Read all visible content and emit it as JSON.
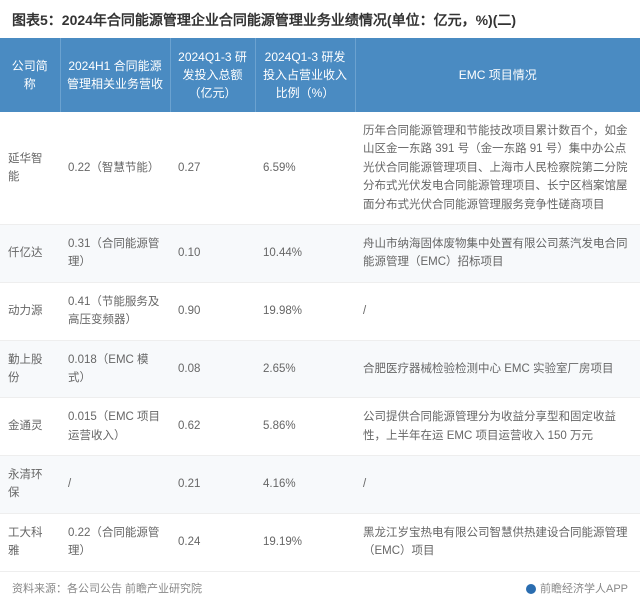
{
  "title": "图表5：2024年合同能源管理企业合同能源管理业务业绩情况(单位：亿元，%)(二)",
  "table": {
    "type": "table",
    "header_bg": "#4a8bc2",
    "header_fg": "#ffffff",
    "row_alt_bg": "#f7f9fb",
    "row_bg": "#ffffff",
    "border_color": "#eeeeee",
    "text_color": "#666666",
    "font_size": 12,
    "columns": [
      "公司简称",
      "2024H1 合同能源管理相关业务营收",
      "2024Q1-3 研发投入总额（亿元）",
      "2024Q1-3 研发投入占营业收入比例（%）",
      "EMC 项目情况"
    ],
    "rows": [
      {
        "c0": "延华智能",
        "c1": "0.22（智慧节能）",
        "c2": "0.27",
        "c3": "6.59%",
        "c4": "历年合同能源管理和节能技改项目累计数百个，如金山区金一东路 391 号（金一东路 91 号）集中办公点光伏合同能源管理项目、上海市人民检察院第二分院分布式光伏发电合同能源管理项目、长宁区档案馆屋面分布式光伏合同能源管理服务竞争性磋商项目"
      },
      {
        "c0": "仟亿达",
        "c1": "0.31（合同能源管理）",
        "c2": "0.10",
        "c3": "10.44%",
        "c4": "舟山市纳海固体废物集中处置有限公司蒸汽发电合同能源管理（EMC）招标项目"
      },
      {
        "c0": "动力源",
        "c1": "0.41（节能服务及高压变频器）",
        "c2": "0.90",
        "c3": "19.98%",
        "c4": "/"
      },
      {
        "c0": "勤上股份",
        "c1": "0.018（EMC 模式）",
        "c2": "0.08",
        "c3": "2.65%",
        "c4": "合肥医疗器械检验检测中心 EMC 实验室厂房项目"
      },
      {
        "c0": "金通灵",
        "c1": "0.015（EMC 项目运营收入）",
        "c2": "0.62",
        "c3": "5.86%",
        "c4": "公司提供合同能源管理分为收益分享型和固定收益性，上半年在运 EMC 项目运营收入 150 万元"
      },
      {
        "c0": "永清环保",
        "c1": "/",
        "c2": "0.21",
        "c3": "4.16%",
        "c4": "/"
      },
      {
        "c0": "工大科雅",
        "c1": "0.22（合同能源管理）",
        "c2": "0.24",
        "c3": "19.19%",
        "c4": "黑龙江岁宝热电有限公司智慧供热建设合同能源管理（EMC）项目"
      }
    ]
  },
  "footer": {
    "source": "资料来源：各公司公告 前瞻产业研究院",
    "brand": "前瞻经济学人APP"
  }
}
